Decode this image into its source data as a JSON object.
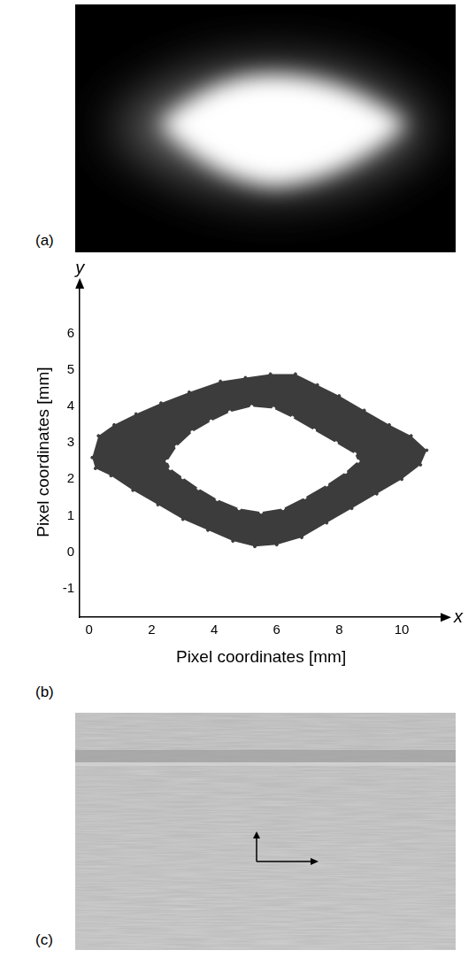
{
  "panel_labels": [
    "(a)",
    "(b)",
    "(c)"
  ],
  "axis_letters": {
    "x": "x",
    "y": "y"
  },
  "chart_data": {
    "type": "scatter",
    "x_label": "Pixel coordinates [mm]",
    "y_label": "Pixel coordinates [mm]",
    "xlim": [
      -0.3,
      11.3
    ],
    "ylim": [
      -1.8,
      7.3
    ],
    "xticks": [
      0,
      2,
      4,
      6,
      8,
      10
    ],
    "yticks": [
      -1,
      0,
      1,
      2,
      3,
      4,
      5,
      6
    ],
    "grid": false,
    "series": [
      {
        "color": "#3c3c3c",
        "marker": "circle",
        "x": [
          0.1,
          0.3,
          0.8,
          1.5,
          2.3,
          3.2,
          4.2,
          5.0,
          5.8,
          6.6,
          7.3,
          8.0,
          8.8,
          9.6,
          10.3,
          10.8,
          10.6,
          10.0,
          9.2,
          8.4,
          7.6,
          6.8,
          6.0,
          5.3,
          4.6,
          3.8,
          3.0,
          2.2,
          1.4,
          0.7,
          0.2
        ],
        "y": [
          2.6,
          3.2,
          3.5,
          3.8,
          4.1,
          4.4,
          4.7,
          4.8,
          4.9,
          4.9,
          4.6,
          4.3,
          3.9,
          3.5,
          3.2,
          2.8,
          2.4,
          2.0,
          1.6,
          1.2,
          0.8,
          0.4,
          0.2,
          0.15,
          0.3,
          0.6,
          0.9,
          1.3,
          1.7,
          2.1,
          2.3
        ]
      },
      {
        "color": "#ffffff",
        "marker": "circle",
        "x": [
          2.5,
          2.8,
          3.3,
          3.9,
          4.5,
          5.2,
          5.9,
          6.5,
          7.2,
          7.9,
          8.5,
          8.6,
          8.2,
          7.6,
          6.9,
          6.2,
          5.5,
          4.8,
          4.1,
          3.5,
          3.0,
          2.6
        ],
        "y": [
          2.5,
          2.9,
          3.3,
          3.6,
          3.85,
          4.0,
          3.95,
          3.7,
          3.35,
          3.0,
          2.7,
          2.5,
          2.2,
          1.85,
          1.5,
          1.2,
          1.1,
          1.2,
          1.45,
          1.75,
          2.05,
          2.3
        ]
      }
    ]
  }
}
